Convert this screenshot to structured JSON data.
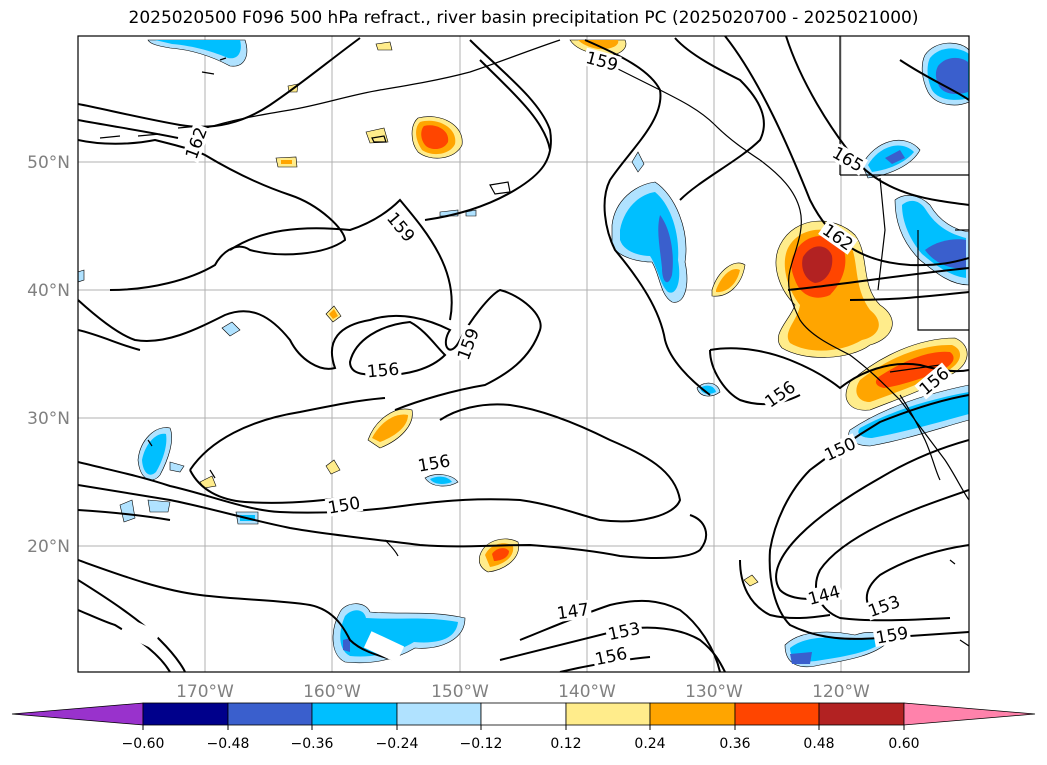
{
  "title": "2025020500 F096 500 hPa refract., river basin precipitation PC (2025020700 - 2025021000)",
  "map": {
    "lon_ticks": [
      "170°W",
      "160°W",
      "150°W",
      "140°W",
      "130°W",
      "120°W"
    ],
    "lat_ticks": [
      "50°N",
      "40°N",
      "30°N",
      "20°N"
    ],
    "contour_labels": [
      "165",
      "162",
      "162",
      "159",
      "159",
      "159",
      "159",
      "156",
      "156",
      "156",
      "156",
      "156",
      "153",
      "153",
      "150",
      "150",
      "147",
      "144"
    ]
  },
  "colorbar": {
    "tick_labels": [
      "−0.60",
      "−0.48",
      "−0.36",
      "−0.24",
      "−0.12",
      "0.12",
      "0.24",
      "0.36",
      "0.48",
      "0.60"
    ],
    "colors": [
      "#9932cc",
      "#00008b",
      "#3a5fcd",
      "#00bfff",
      "#b0e2ff",
      "#ffffff",
      "#ffec8b",
      "#ffa500",
      "#ff4500",
      "#b22222",
      "#ff82ab"
    ]
  },
  "colors": {
    "neg_light": "#b0e2ff",
    "neg_mid": "#00bfff",
    "neg_strong": "#3a5fcd",
    "pos_light": "#ffec8b",
    "pos_mid": "#ffa500",
    "pos_strong": "#ff4500",
    "pos_max": "#b22222"
  }
}
